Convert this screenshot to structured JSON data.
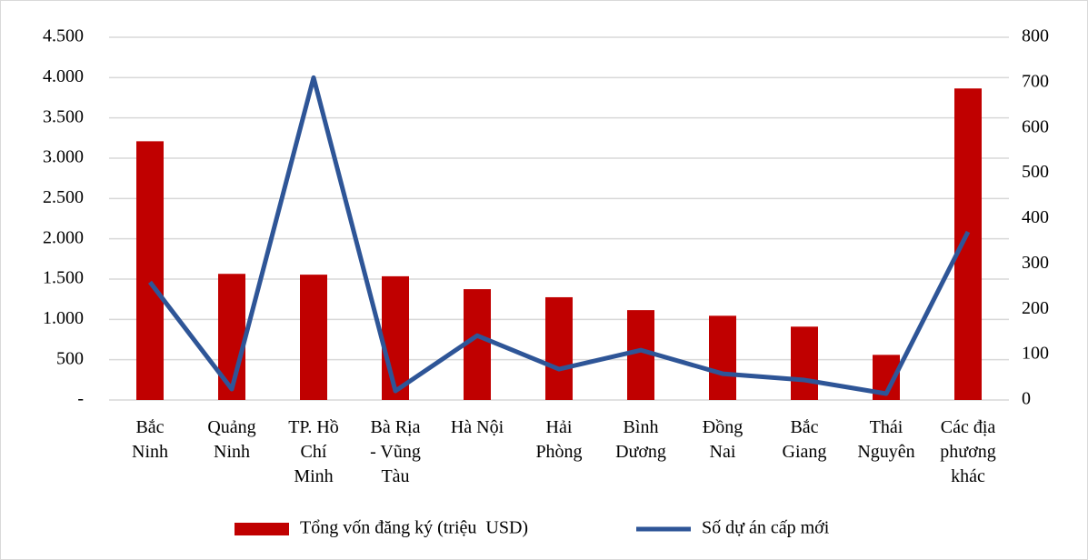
{
  "chart_data": {
    "type": "bar-line",
    "categories": [
      "Bắc Ninh",
      "Quảng Ninh",
      "TP. Hồ Chí Minh",
      "Bà Rịa - Vũng Tàu",
      "Hà Nội",
      "Hải Phòng",
      "Bình Dương",
      "Đồng Nai",
      "Bắc Giang",
      "Thái Nguyên",
      "Các địa phương khác"
    ],
    "series": [
      {
        "name": "Tổng vốn đăng ký (triệu  USD)",
        "type": "bar",
        "color": "#c00000",
        "axis": "y",
        "values": [
          3210,
          1565,
          1555,
          1535,
          1375,
          1275,
          1115,
          1045,
          910,
          560,
          3865
        ]
      },
      {
        "name": "Số dự án cấp mới",
        "type": "line",
        "color": "#2e5597",
        "axis": "y2",
        "values": [
          260,
          24,
          711,
          20,
          142,
          68,
          110,
          58,
          44,
          14,
          371
        ]
      }
    ],
    "ylim": [
      0,
      4500
    ],
    "yticks": [
      {
        "value": 0,
        "label": "-"
      },
      500,
      {
        "value": 1000,
        "label": "1.000"
      },
      {
        "value": 1500,
        "label": "1.500"
      },
      {
        "value": 2000,
        "label": "2.000"
      },
      {
        "value": 2500,
        "label": "2.500"
      },
      {
        "value": 3000,
        "label": "3.000"
      },
      {
        "value": 3500,
        "label": "3.500"
      },
      {
        "value": 4000,
        "label": "4.000"
      },
      {
        "value": 4500,
        "label": "4.500"
      }
    ],
    "y2lim": [
      0,
      800
    ],
    "y2ticks": [
      0,
      100,
      200,
      300,
      400,
      500,
      600,
      700,
      800
    ],
    "grid": true,
    "legend": "bottom"
  }
}
